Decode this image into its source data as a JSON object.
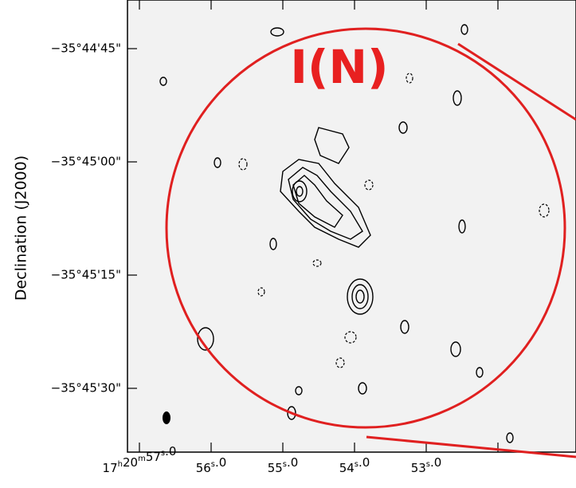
{
  "plot": {
    "label": "I(N)",
    "y_axis_title": "Declination (J2000)",
    "y_tick_labels": [
      "−35°44'45\"",
      "−35°45'00\"",
      "−35°45'15\"",
      "−35°45'30\""
    ],
    "unit_labels": {
      "hours": "h",
      "minutes": "m",
      "seconds": "s"
    },
    "x_tick_labels": [
      {
        "hours": "17",
        "minutes": "20",
        "seconds": "57",
        "fraction": ".0"
      },
      {
        "seconds": "56",
        "fraction": ".0"
      },
      {
        "seconds": "55",
        "fraction": ".0"
      },
      {
        "seconds": "54",
        "fraction": ".0"
      },
      {
        "seconds": "53",
        "fraction": ".0"
      }
    ]
  }
}
